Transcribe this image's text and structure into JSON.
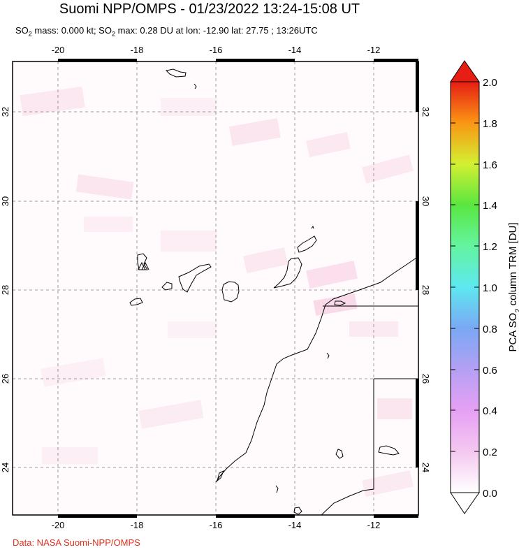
{
  "header": {
    "title": "Suomi NPP/OMPS - 01/23/2022 13:24-15:08 UT",
    "subtitle_pre": "SO",
    "subtitle_sub1": "2",
    "subtitle_mid": " mass: 0.000 kt; SO",
    "subtitle_sub2": "2",
    "subtitle_post": " max: 0.28 DU at lon: -12.90 lat: 27.75 ; 13:26UTC"
  },
  "map": {
    "lon_ticks": [
      "-20",
      "-18",
      "-16",
      "-14",
      "-12"
    ],
    "lat_ticks": [
      "32",
      "30",
      "28",
      "26",
      "24"
    ],
    "land_outline_color": "#000000",
    "grid_color": "#999999"
  },
  "colorbar": {
    "label_pre": "PCA SO",
    "label_sub": "2",
    "label_post": " column TRM [DU]",
    "ticks": [
      "2.0",
      "1.8",
      "1.6",
      "1.4",
      "1.2",
      "1.0",
      "0.8",
      "0.6",
      "0.4",
      "0.2",
      "0.0"
    ],
    "colors": [
      "#ffffff",
      "#f4c8f0",
      "#c896f0",
      "#7aa0f4",
      "#5ee6f0",
      "#64f4a0",
      "#5ae640",
      "#c8f032",
      "#f8c81e",
      "#fa6414",
      "#e61e14"
    ]
  },
  "footer": {
    "credit": "Data: NASA Suomi-NPP/OMPS"
  }
}
